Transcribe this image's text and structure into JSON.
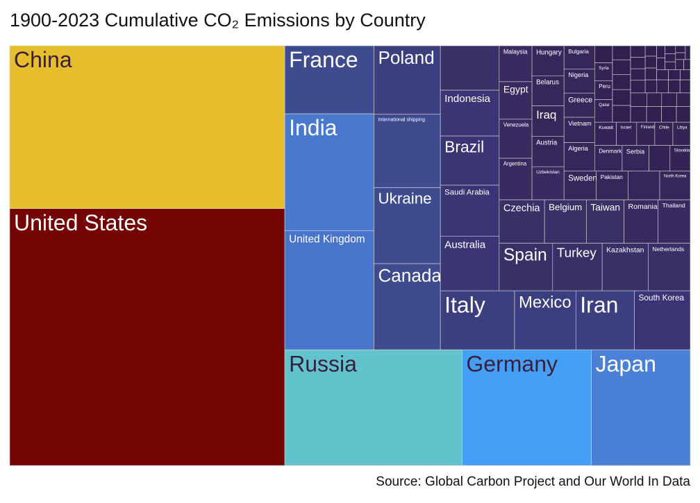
{
  "chart_data": {
    "type": "treemap",
    "title": "1900-2023 Cumulative CO₂ Emissions by Country",
    "caption": "Source: Global Carbon Project and Our World In Data",
    "categories": [
      "United States",
      "China",
      "Russia",
      "Germany",
      "Japan",
      "United Kingdom",
      "India",
      "France",
      "Canada",
      "Ukraine",
      "International shipping",
      "Poland",
      "Italy",
      "Mexico",
      "Iran",
      "South Korea",
      "Australia",
      "Saudi Arabia",
      "Brazil",
      "Indonesia",
      null,
      "Spain",
      "Turkey",
      "Kazakhstan",
      "Netherlands",
      "Czechia",
      "Belgium",
      "Taiwan",
      "Romania",
      "Thailand",
      "Argentina",
      "Venezuela",
      "Egypt",
      "Malaysia",
      "Uzbekistan",
      "Austria",
      "Iraq",
      "Belarus",
      "Hungary",
      "Sweden",
      "Pakistan",
      null,
      "North Korea",
      "Algeria",
      "Vietnam",
      "Greece",
      "Nigeria",
      "Bulgaria",
      "Denmark",
      "Serbia",
      null,
      "Slovakia",
      "Kuwait",
      "Israel",
      "Finland",
      "Chile",
      "Libya",
      "Qatar",
      "Peru",
      "Syria",
      null,
      null,
      null,
      null,
      null,
      null,
      null,
      null,
      null,
      null,
      null,
      null,
      null,
      null,
      null,
      null,
      null,
      null,
      null,
      null,
      null,
      null,
      null,
      null,
      null,
      null,
      null,
      null,
      null,
      null,
      null,
      null,
      null,
      null,
      null,
      null,
      null,
      null
    ],
    "values": [
      420,
      266,
      122,
      89,
      68,
      63,
      62,
      36,
      34,
      30,
      29,
      27,
      26,
      21.5,
      20.5,
      19.6,
      19,
      17.9,
      17.2,
      16,
      15.5,
      15.1,
      14,
      13,
      11.9,
      11.7,
      10.8,
      9.7,
      8.8,
      8.3,
      8.1,
      7.6,
      7.3,
      7,
      6.3,
      5.8,
      5.8,
      5.7,
      5.7,
      5.5,
      5.4,
      5.4,
      5.2,
      5.2,
      4.6,
      4.4,
      4.4,
      4.2,
      4.2,
      4.1,
      3.2,
      3.1,
      3,
      2.8,
      2.5,
      2.5,
      2.4,
      2.4,
      2,
      1.9,
      1.8,
      1.8,
      1.7,
      1.6,
      1.6,
      1.5,
      1.5,
      1.4,
      1.4,
      1.3,
      1.3,
      1.2,
      1.2,
      1.1,
      1.1,
      1,
      1,
      1,
      0.9,
      0.9,
      0.9,
      0.8,
      0.8,
      0.8,
      0.7,
      0.7,
      0.7,
      0.6,
      0.6,
      0.6,
      0.5,
      0.5,
      0.5,
      0.5,
      0.4,
      0.4,
      0.4,
      0.4
    ],
    "colors": [
      "#740404",
      "#e6bd2d",
      "#62c3cc",
      "#45a0f5",
      "#4a80d6",
      "#4874cb",
      "#4979cf",
      "#3e4b8f",
      "#3e4b8f",
      "#3e4b8f",
      "#3e4b8f",
      "#3b3f80",
      "#3b3f80",
      "#3b3f80",
      "#3b3f80",
      "#3a3675",
      "#3a3675",
      "#3a3675",
      "#3a3675",
      "#3a3675",
      "#3a3068",
      "#3a3068",
      "#3a3068",
      "#3a3068",
      "#3a3068",
      "#3a3068",
      "#3a3068",
      "#3a3068",
      "#382b62",
      "#382b62",
      "#382b62",
      "#382b62",
      "#382b62",
      "#382b62",
      "#382b62",
      "#36275b",
      "#36275b",
      "#36275b",
      "#36275b",
      "#36275b",
      "#36275b",
      "#36275b",
      "#36275b",
      "#36275b",
      "#36275b",
      "#36275b",
      "#36275b",
      "#36275b",
      "#36275b",
      "#36275b",
      "#342355",
      "#342355",
      "#342355",
      "#342355",
      "#342355",
      "#342355",
      "#342355",
      "#342355",
      "#342355",
      "#342355",
      "#311f4f",
      "#311f4f",
      "#311f4f",
      "#311f4f",
      "#311f4f",
      "#311f4f",
      "#311f4f",
      "#311f4f",
      "#311f4f",
      "#311f4f",
      "#311f4f",
      "#311f4f",
      "#311f4f",
      "#311f4f",
      "#311f4f",
      "#311f4f",
      "#311f4f",
      "#311f4f",
      "#311f4f",
      "#311f4f",
      "#311f4f",
      "#311f4f",
      "#311f4f",
      "#311f4f",
      "#311f4f",
      "#311f4f",
      "#311f4f",
      "#311f4f",
      "#311f4f",
      "#311f4f",
      "#311f4f",
      "#311f4f",
      "#311f4f",
      "#311f4f",
      "#311f4f",
      "#311f4f",
      "#311f4f",
      "#311f4f"
    ]
  }
}
